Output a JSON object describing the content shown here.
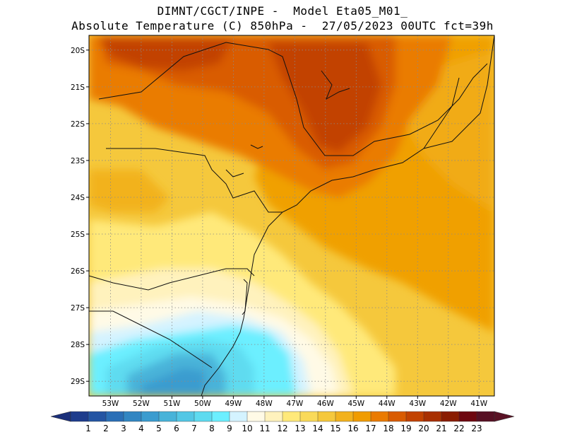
{
  "title": {
    "line1": "DIMNT/CGCT/INPE -  Model Eta05_M01_",
    "line2": "Absolute Temperature (C) 850hPa -  27/05/2023 00UTC fct=39h"
  },
  "map": {
    "lat_labels": [
      "20S",
      "21S",
      "22S",
      "23S",
      "24S",
      "25S",
      "26S",
      "27S",
      "28S",
      "29S"
    ],
    "lat_values": [
      -20,
      -21,
      -22,
      -23,
      -24,
      -25,
      -26,
      -27,
      -28,
      -29
    ],
    "lon_labels": [
      "53W",
      "52W",
      "51W",
      "50W",
      "49W",
      "48W",
      "47W",
      "46W",
      "45W",
      "44W",
      "43W",
      "42W",
      "41W"
    ],
    "lon_values": [
      -53,
      -52,
      -51,
      -50,
      -49,
      -48,
      -47,
      -46,
      -45,
      -44,
      -43,
      -42,
      -41
    ],
    "extent": {
      "lon_min": -53.7,
      "lon_max": -40.5,
      "lat_max": -19.6,
      "lat_min": -29.4
    },
    "grid": "dotted",
    "fill_regions": [
      {
        "level": 20,
        "note_area": "north-west interior"
      },
      {
        "level": 19,
        "note_area": "north-central interior"
      },
      {
        "level": 17,
        "note_area": "east"
      },
      {
        "level": 15,
        "note_area": "west"
      },
      {
        "level": 13,
        "note_area": "centre"
      },
      {
        "level": 11,
        "note_area": "coast south"
      },
      {
        "level": 9,
        "note_area": "south"
      },
      {
        "level": 7,
        "note_area": "south-west"
      }
    ]
  },
  "colorbar": {
    "labels": [
      "1",
      "2",
      "3",
      "4",
      "5",
      "6",
      "7",
      "8",
      "9",
      "10",
      "11",
      "12",
      "13",
      "14",
      "15",
      "16",
      "17",
      "18",
      "19",
      "20",
      "21",
      "22",
      "23"
    ],
    "colors": [
      "#1d3c8c",
      "#2455a3",
      "#2a6fb6",
      "#3286c2",
      "#3b9ccf",
      "#48b3d9",
      "#53c7e5",
      "#5edbf0",
      "#6cefff",
      "#d4f3ff",
      "#fffae6",
      "#fff2bd",
      "#ffe97a",
      "#fada5a",
      "#f5c83c",
      "#f2b21e",
      "#f09c00",
      "#ea7b00",
      "#d95c00",
      "#c24300",
      "#a83000",
      "#8a1c00",
      "#6e0710",
      "#571024"
    ],
    "arrow_low": "#1a2f7a",
    "arrow_high": "#5a1225"
  }
}
